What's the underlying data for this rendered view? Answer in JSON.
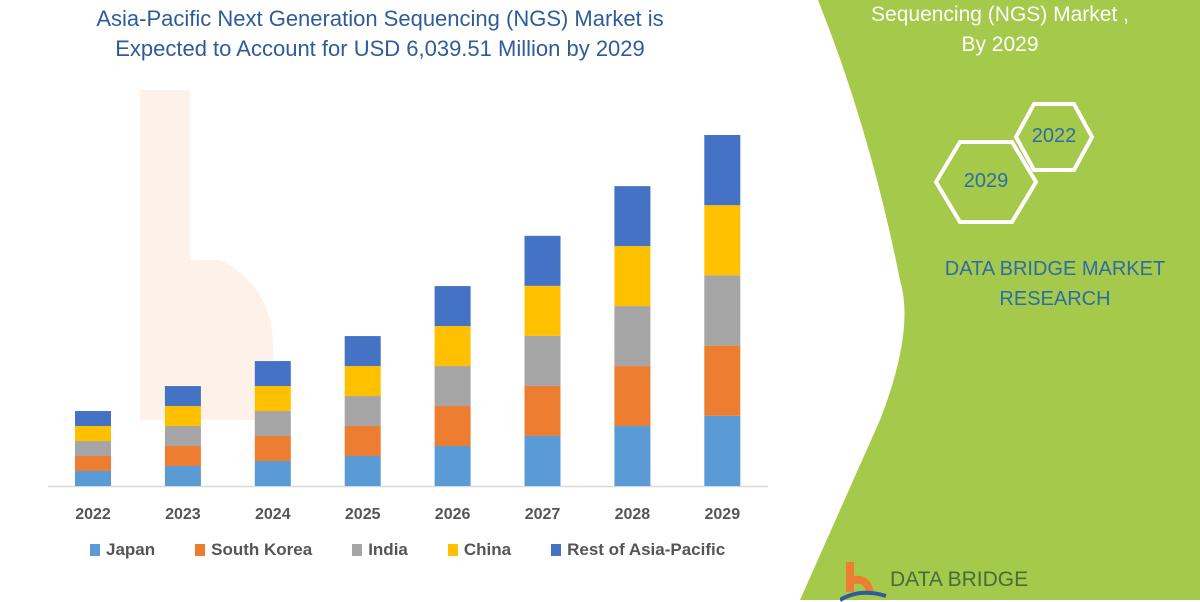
{
  "header": {
    "title_line1": "Asia-Pacific Next Generation Sequencing (NGS) Market is",
    "title_line2": "Expected to Account for USD 6,039.51 Million by 2029"
  },
  "side_panel": {
    "title_line1": "Sequencing (NGS) Market ,",
    "title_line2": "By 2029",
    "hex_left": "2029",
    "hex_right": "2022",
    "brand_line1": "DATA BRIDGE MARKET",
    "brand_line2": "RESEARCH",
    "logo_text": "DATA BRIDGE",
    "panel_color": "#a5c94a"
  },
  "chart_data": {
    "type": "bar",
    "stacked": true,
    "title": "Asia-Pacific Next Generation Sequencing (NGS) Market is Expected to Account for USD 6,039.51 Million by 2029",
    "unit": "USD Million",
    "categories": [
      "2022",
      "2023",
      "2024",
      "2025",
      "2026",
      "2027",
      "2028",
      "2029"
    ],
    "series": [
      {
        "name": "Japan",
        "color": "#5b9bd5",
        "values": [
          258,
          344,
          430,
          516,
          688,
          861,
          1032,
          1208
        ]
      },
      {
        "name": "South Korea",
        "color": "#ed7d31",
        "values": [
          258,
          344,
          430,
          516,
          688,
          861,
          1032,
          1208
        ]
      },
      {
        "name": "India",
        "color": "#a5a5a5",
        "values": [
          258,
          344,
          430,
          516,
          688,
          861,
          1032,
          1208
        ]
      },
      {
        "name": "China",
        "color": "#ffc000",
        "values": [
          258,
          344,
          430,
          516,
          688,
          861,
          1032,
          1208
        ]
      },
      {
        "name": "Rest of Asia-Pacific",
        "color": "#4472c4",
        "values": [
          258,
          344,
          430,
          516,
          688,
          861,
          1032,
          1208
        ]
      }
    ],
    "ylim": [
      0,
      6040
    ],
    "y_axis_shown": false,
    "grid": false,
    "legend_position": "bottom"
  }
}
